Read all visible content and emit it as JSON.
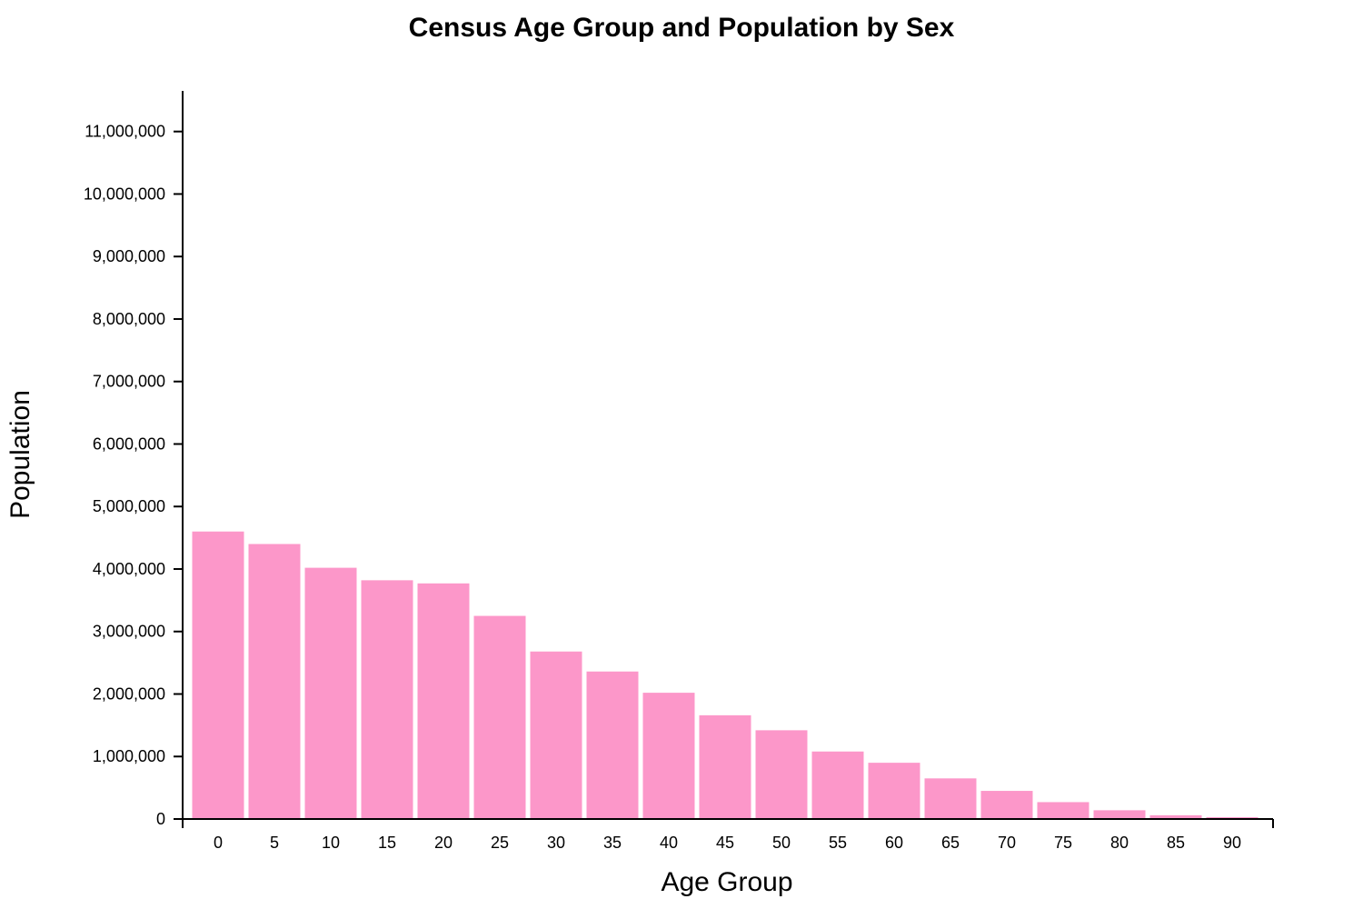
{
  "chart_data": {
    "type": "bar",
    "title": "Census Age Group and Population by Sex",
    "xlabel": "Age Group",
    "ylabel": "Population",
    "categories": [
      "0",
      "5",
      "10",
      "15",
      "20",
      "25",
      "30",
      "35",
      "40",
      "45",
      "50",
      "55",
      "60",
      "65",
      "70",
      "75",
      "80",
      "85",
      "90"
    ],
    "values": [
      4600000,
      4400000,
      4020000,
      3820000,
      3770000,
      3250000,
      2680000,
      2360000,
      2020000,
      1660000,
      1420000,
      1080000,
      900000,
      650000,
      450000,
      270000,
      140000,
      60000,
      30000
    ],
    "ylim": [
      0,
      11650000
    ],
    "yticks": [
      0,
      1000000,
      2000000,
      3000000,
      4000000,
      5000000,
      6000000,
      7000000,
      8000000,
      9000000,
      10000000,
      11000000
    ],
    "ytick_labels": [
      "0",
      "1,000,000",
      "2,000,000",
      "3,000,000",
      "4,000,000",
      "5,000,000",
      "6,000,000",
      "7,000,000",
      "8,000,000",
      "9,000,000",
      "10,000,000",
      "11,000,000"
    ],
    "bar_color": "#fc97c9",
    "grid": false,
    "legend": "none"
  }
}
